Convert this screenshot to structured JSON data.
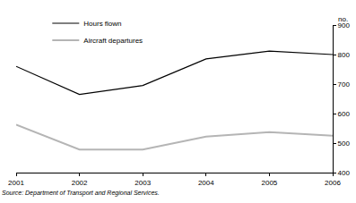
{
  "chart_data": {
    "type": "line",
    "x": [
      2001,
      2002,
      2003,
      2004,
      2005,
      2006
    ],
    "series": [
      {
        "name": "Hours flown",
        "color": "#000000",
        "values": [
          760,
          665,
          695,
          785,
          812,
          800
        ]
      },
      {
        "name": "Aircraft departures",
        "color": "#b5b5b5",
        "values": [
          562,
          478,
          478,
          522,
          537,
          525
        ]
      }
    ],
    "xlim": [
      2001,
      2006
    ],
    "xticks": [
      2001,
      2002,
      2003,
      2004,
      2005,
      2006
    ],
    "ylim": [
      400,
      900
    ],
    "yticks": [
      400,
      500,
      600,
      700,
      800,
      900
    ],
    "y_label": "no.",
    "source": "Source: Department of Transport and Regional Services.",
    "grid": false,
    "legend": "top-left"
  }
}
